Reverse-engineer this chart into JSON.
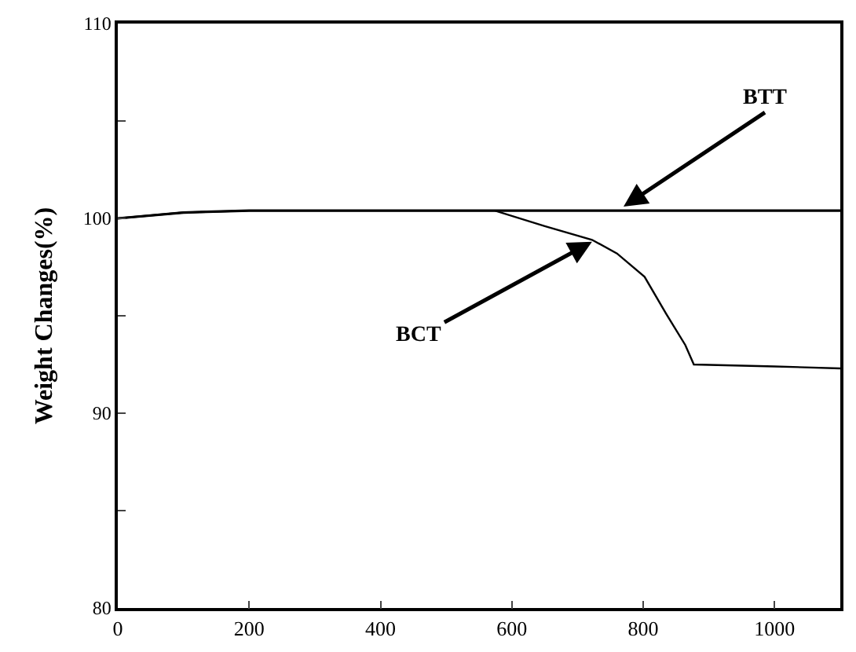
{
  "chart_data": {
    "type": "line",
    "ylabel": "Weight Changes(%)",
    "x": [
      0,
      100,
      200,
      300,
      400,
      500,
      574,
      1100
    ],
    "series": [
      {
        "color": "#000000",
        "values": [
          100.0,
          100.3,
          100.4,
          100.4,
          100.4,
          100.4,
          100.4,
          100.4
        ]
      },
      {
        "color": "#000000",
        "x": [
          0,
          100,
          200,
          300,
          400,
          500,
          574,
          650,
          722,
          760,
          802,
          835,
          864,
          877,
          1000,
          1100
        ],
        "values": [
          100.0,
          100.3,
          100.4,
          100.4,
          100.4,
          100.4,
          100.4,
          99.6,
          98.9,
          98.2,
          97.0,
          95.1,
          93.5,
          92.5,
          92.4,
          92.3
        ]
      }
    ],
    "xlim": [
      0,
      1100
    ],
    "xticks": [
      0,
      200,
      400,
      600,
      800,
      1000
    ],
    "ylim": [
      80,
      110
    ],
    "yticks": [
      80,
      {
        "value": 85,
        "label": null
      },
      90,
      {
        "value": 95,
        "label": null
      },
      100,
      {
        "value": 105,
        "label": null
      },
      110
    ],
    "annotations": [
      {
        "text": "BTT",
        "x": 770,
        "y": 100.6
      },
      {
        "text": "BCT",
        "x": 722,
        "y": 98.8
      }
    ],
    "marker": "none",
    "line_style": "solid"
  }
}
